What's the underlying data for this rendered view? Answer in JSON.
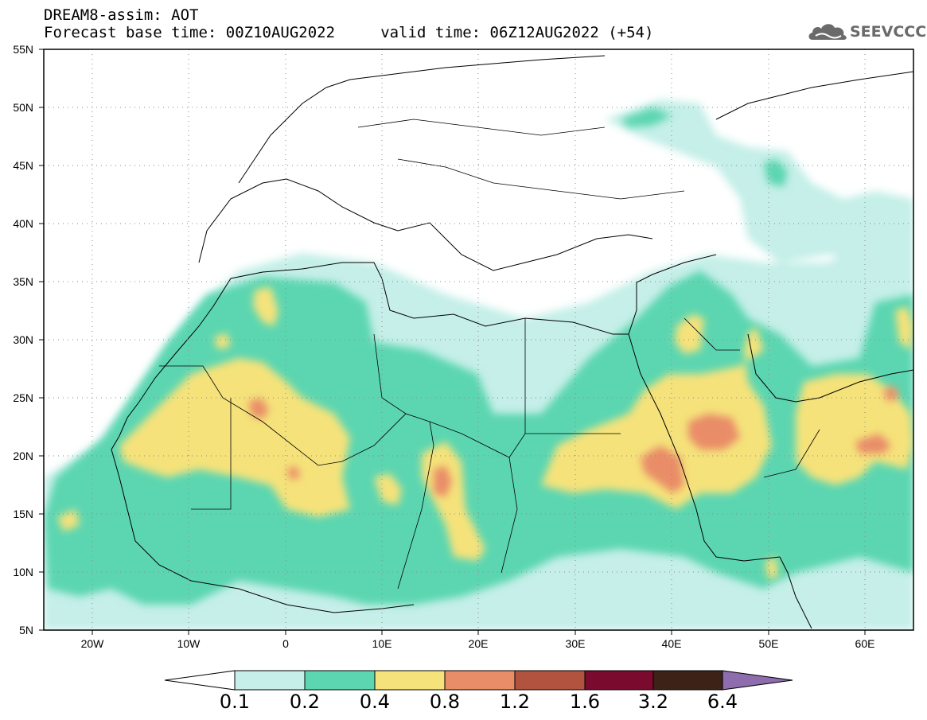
{
  "header": {
    "title_line1": "DREAM8-assim: AOT",
    "title_line2": "Forecast base time: 00Z10AUG2022     valid time: 06Z12AUG2022 (+54)",
    "logo_text": "SEEVCCC",
    "logo_icon": "cloud-icon"
  },
  "map": {
    "lat_labels": [
      "55N",
      "50N",
      "45N",
      "40N",
      "35N",
      "30N",
      "25N",
      "20N",
      "15N",
      "10N",
      "5N"
    ],
    "lon_labels": [
      "20W",
      "10W",
      "0",
      "10E",
      "20E",
      "30E",
      "40E",
      "50E",
      "60E"
    ],
    "lat_range": [
      5,
      55
    ],
    "lon_range": [
      -25,
      65
    ],
    "grid": "dotted",
    "variable": "AOT"
  },
  "colorbar": {
    "colors": [
      "#ffffff",
      "#c5efe8",
      "#5cd6b1",
      "#f5e27a",
      "#e98d68",
      "#b1533f",
      "#7a0a2e",
      "#3d2217",
      "#8e6cae"
    ],
    "labels": [
      "0.1",
      "0.2",
      "0.4",
      "0.8",
      "1.2",
      "1.6",
      "3.2",
      "6.4"
    ]
  },
  "legend_colors": {
    "lt01": "#ffffff",
    "c1": "#c5efe8",
    "c2": "#5cd6b1",
    "c3": "#f5e27a",
    "c4": "#e98d68",
    "c5": "#b1533f"
  }
}
